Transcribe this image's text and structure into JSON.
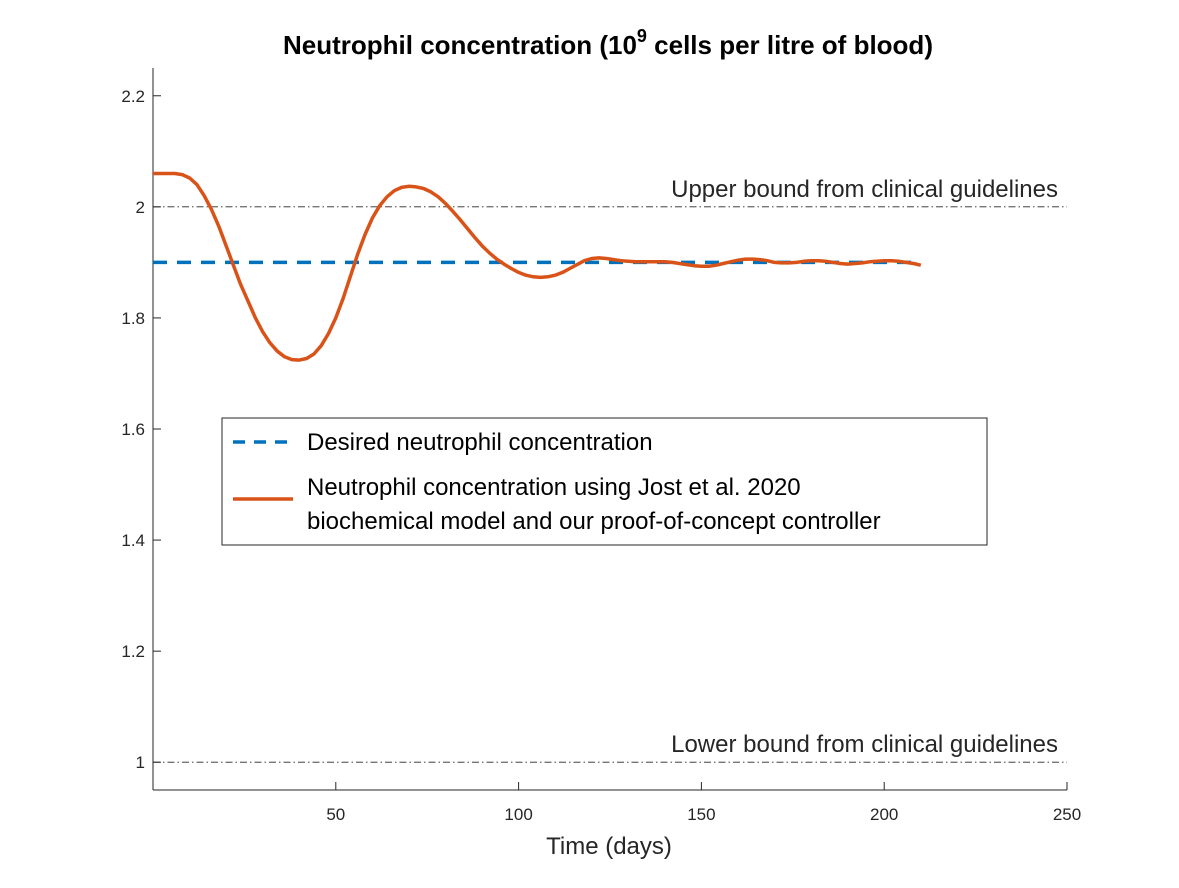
{
  "chart_data": {
    "type": "line",
    "title": {
      "prefix": "Neutrophil concentration (10",
      "superscript": "9",
      "suffix": " cells per litre of blood)"
    },
    "xlabel": "Time (days)",
    "ylabel": "",
    "xlim": [
      0,
      250
    ],
    "ylim": [
      0.95,
      2.25
    ],
    "xticks": [
      50,
      100,
      150,
      200,
      250
    ],
    "yticks": [
      1,
      1.2,
      1.4,
      1.6,
      1.8,
      2,
      2.2
    ],
    "grid": false,
    "legend_position": "center-left",
    "series": [
      {
        "name": "Desired neutrophil concentration",
        "style": "dashed",
        "color": "#0072BD",
        "x": [
          0,
          210
        ],
        "y": [
          1.9,
          1.9
        ]
      },
      {
        "name": "Neutrophil concentration using Jost et al. 2020 biochemical model and our proof-of-concept controller",
        "name_lines": [
          "Neutrophil concentration using Jost et al. 2020",
          "biochemical model and our proof-of-concept controller"
        ],
        "style": "solid",
        "color": "#D95319",
        "x": [
          0,
          2,
          4,
          6,
          8,
          10,
          12,
          14,
          16,
          18,
          20,
          22,
          24,
          26,
          28,
          30,
          32,
          34,
          36,
          38,
          40,
          42,
          44,
          46,
          48,
          50,
          52,
          54,
          56,
          58,
          60,
          62,
          64,
          66,
          68,
          70,
          72,
          74,
          76,
          78,
          80,
          82,
          84,
          86,
          88,
          90,
          92,
          94,
          96,
          98,
          100,
          102,
          104,
          106,
          108,
          110,
          112,
          114,
          116,
          118,
          120,
          122,
          124,
          126,
          128,
          130,
          132,
          134,
          136,
          138,
          140,
          142,
          144,
          146,
          148,
          150,
          152,
          154,
          156,
          158,
          160,
          162,
          164,
          166,
          168,
          170,
          172,
          174,
          176,
          178,
          180,
          182,
          184,
          186,
          188,
          190,
          192,
          194,
          196,
          198,
          200,
          202,
          204,
          206,
          208,
          210
        ],
        "y": [
          2.06,
          2.06,
          2.06,
          2.06,
          2.058,
          2.052,
          2.04,
          2.02,
          1.995,
          1.965,
          1.93,
          1.895,
          1.86,
          1.83,
          1.8,
          1.775,
          1.755,
          1.74,
          1.73,
          1.725,
          1.724,
          1.727,
          1.735,
          1.75,
          1.772,
          1.8,
          1.835,
          1.875,
          1.915,
          1.95,
          1.98,
          2.002,
          2.018,
          2.029,
          2.035,
          2.037,
          2.036,
          2.033,
          2.027,
          2.018,
          2.006,
          1.992,
          1.977,
          1.961,
          1.945,
          1.93,
          1.917,
          1.906,
          1.897,
          1.889,
          1.882,
          1.877,
          1.874,
          1.873,
          1.874,
          1.877,
          1.882,
          1.889,
          1.896,
          1.903,
          1.907,
          1.908,
          1.907,
          1.905,
          1.903,
          1.902,
          1.901,
          1.901,
          1.901,
          1.901,
          1.901,
          1.9,
          1.898,
          1.896,
          1.894,
          1.893,
          1.893,
          1.895,
          1.898,
          1.901,
          1.904,
          1.906,
          1.906,
          1.905,
          1.903,
          1.9,
          1.899,
          1.899,
          1.9,
          1.902,
          1.903,
          1.903,
          1.902,
          1.9,
          1.898,
          1.897,
          1.898,
          1.899,
          1.901,
          1.902,
          1.903,
          1.903,
          1.902,
          1.9,
          1.898,
          1.895
        ]
      }
    ],
    "reference_lines": [
      {
        "y": 2.0,
        "label": "Upper bound from clinical guidelines"
      },
      {
        "y": 1.0,
        "label": "Lower bound from clinical guidelines"
      }
    ]
  }
}
